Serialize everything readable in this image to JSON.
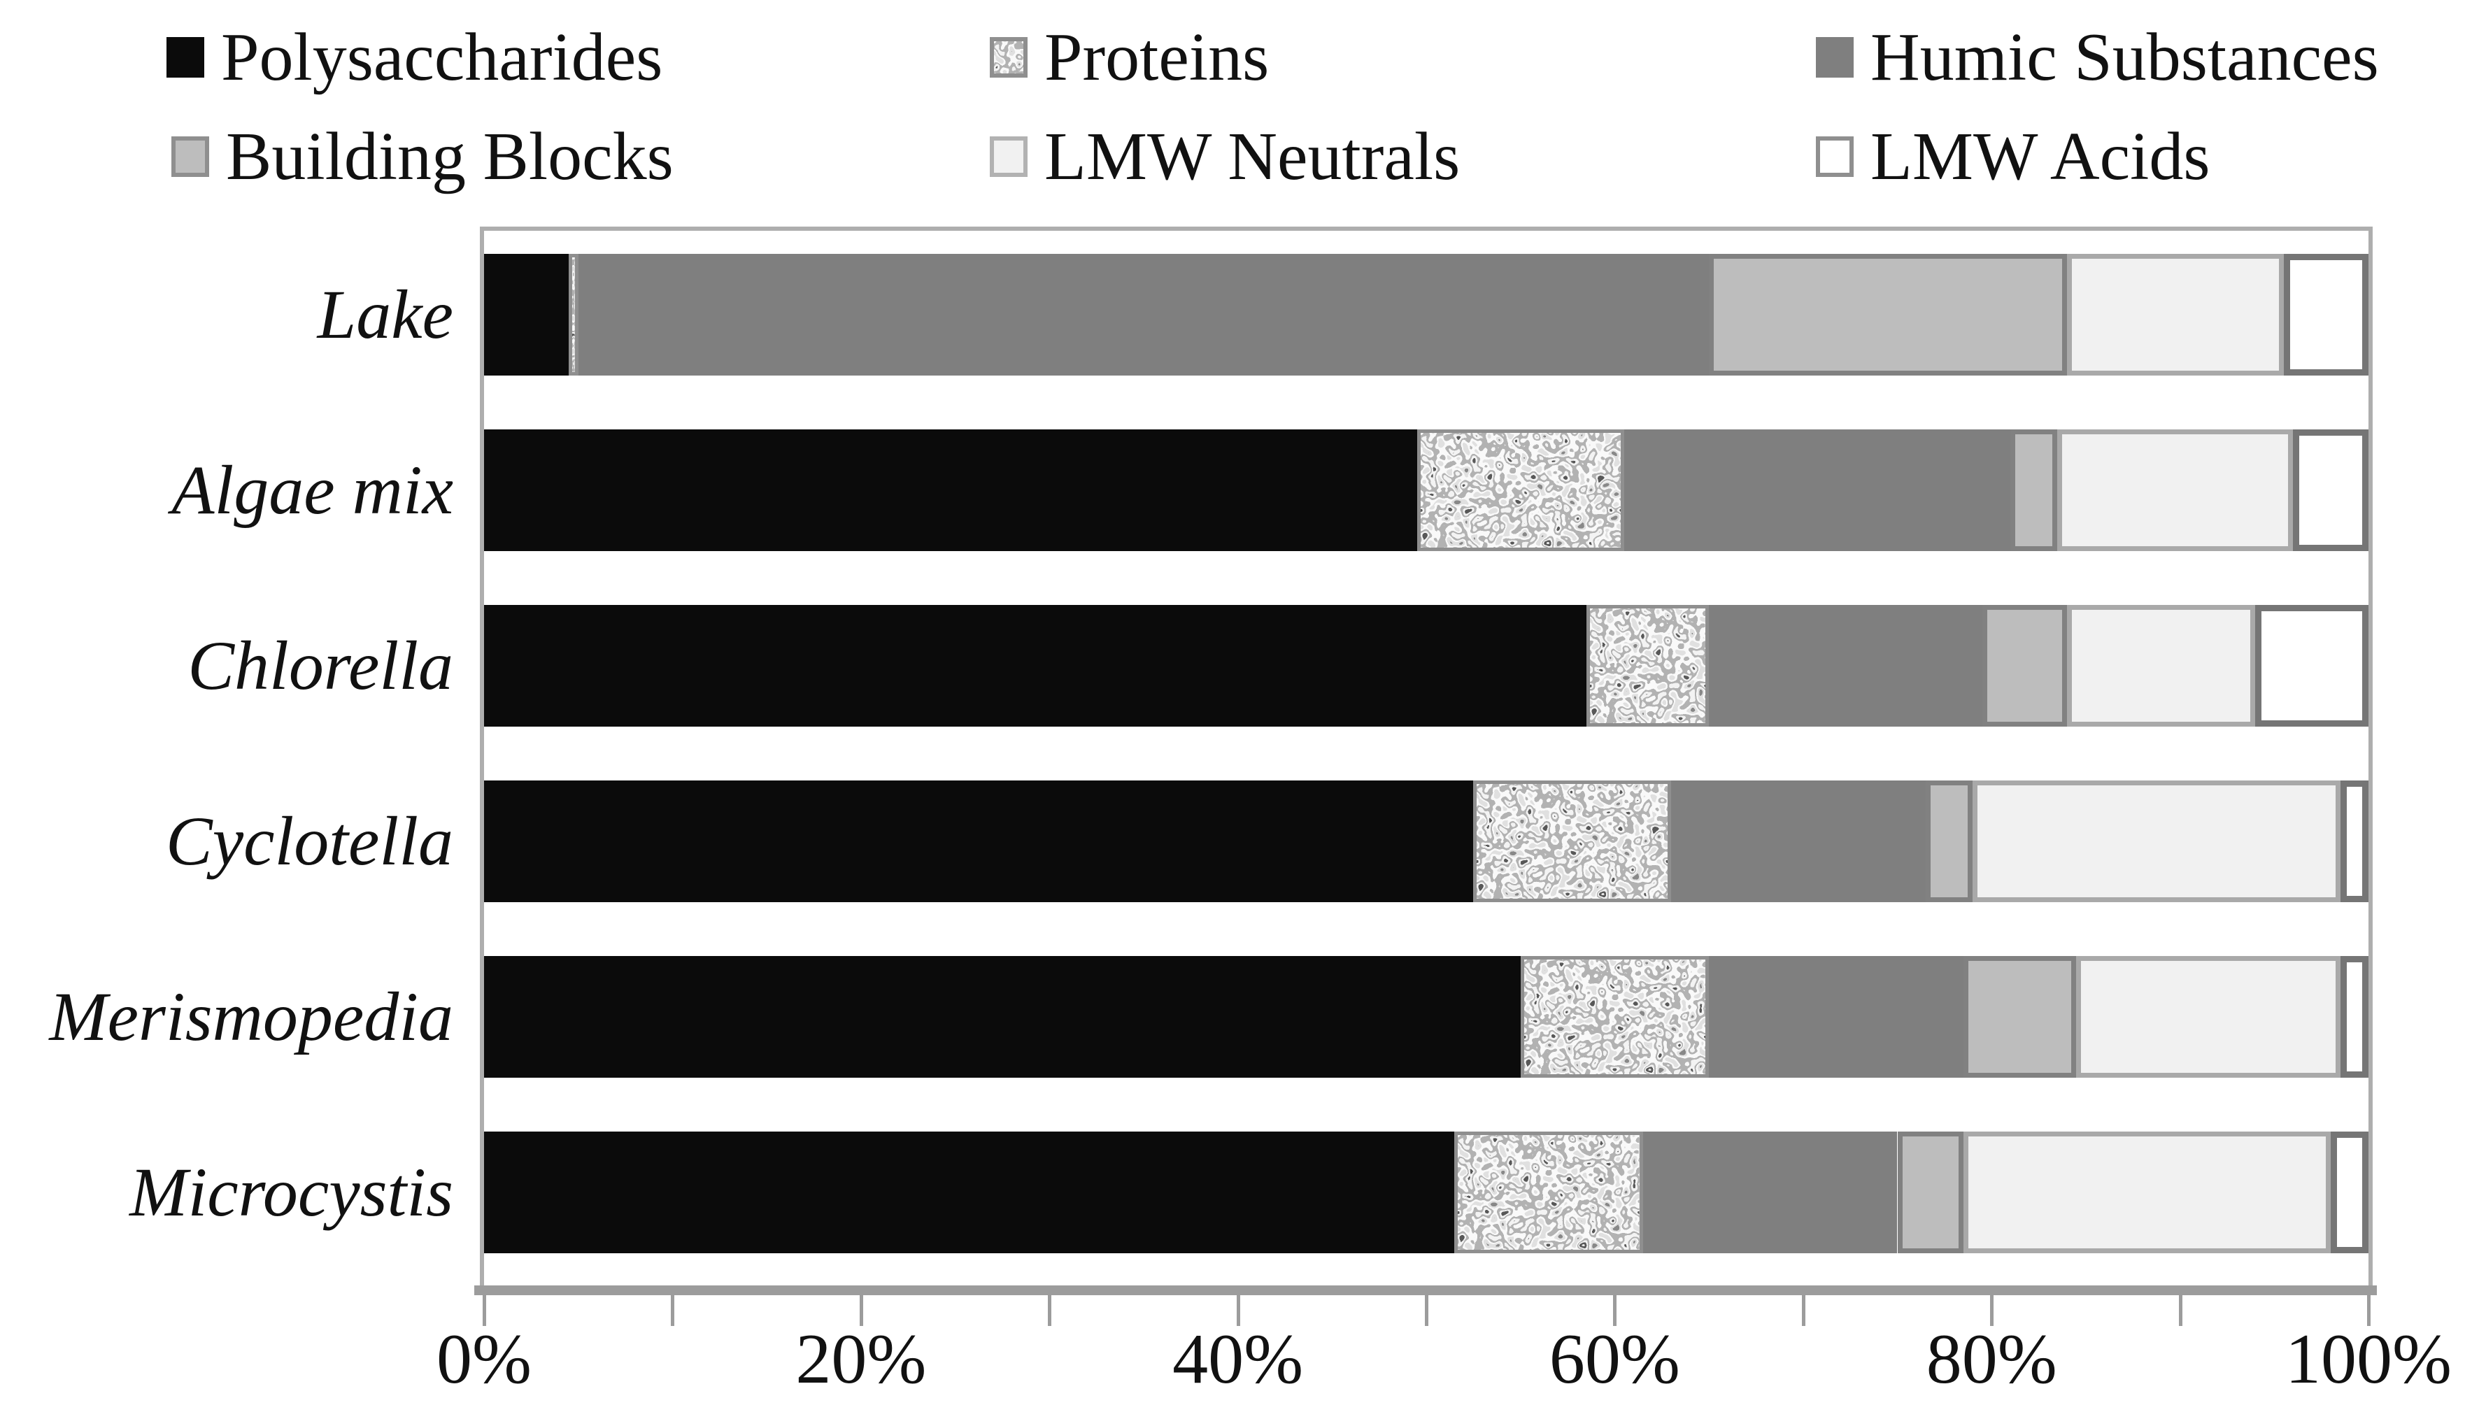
{
  "legend": {
    "position": "top",
    "items": [
      {
        "label": "Polysaccharides"
      },
      {
        "label": "Proteins"
      },
      {
        "label": "Humic Substances"
      },
      {
        "label": "Building Blocks"
      },
      {
        "label": "LMW Neutrals"
      },
      {
        "label": "LMW Acids"
      }
    ]
  },
  "chart_data": {
    "type": "bar",
    "variant": "horizontal-stacked",
    "unit": "%",
    "categories": [
      "Lake",
      "Algae mix",
      "Chlorella",
      "Cyclotella",
      "Merismopedia",
      "Microcystis"
    ],
    "series": [
      {
        "name": "Polysaccharides",
        "values": [
          4.5,
          49.5,
          58.5,
          52.5,
          55,
          51.5
        ]
      },
      {
        "name": "Proteins",
        "values": [
          0.5,
          11,
          6.5,
          10.5,
          10,
          10
        ]
      },
      {
        "name": "Humic Substances",
        "values": [
          60,
          20.5,
          14.5,
          13.5,
          13.5,
          13.5
        ]
      },
      {
        "name": "Building Blocks",
        "values": [
          19,
          2.5,
          4.5,
          2.5,
          6,
          3.5
        ]
      },
      {
        "name": "LMW Neutrals",
        "values": [
          11.5,
          12.5,
          10,
          19.5,
          14,
          19.5
        ]
      },
      {
        "name": "LMW Acids",
        "values": [
          4.5,
          4,
          6,
          1.5,
          1.5,
          2
        ]
      }
    ],
    "xlabel": "",
    "ylabel": "",
    "xlim": [
      0,
      100
    ],
    "x_tick_labels": [
      "0%",
      "20%",
      "40%",
      "60%",
      "80%",
      "100%"
    ],
    "minor_tick_step_percent": 10,
    "grid": false,
    "legend_position": "top",
    "colors": {
      "polysaccharides": "#0b0b0b",
      "proteins_texture_base": "#cfcfcf",
      "humic_substances": "#7f7f7f",
      "building_blocks": "#bdbdbd",
      "lmw_neutrals": "#f1f1f1",
      "lmw_acids": "#ffffff",
      "axis": "#9c9c9c",
      "plot_border": "#aeaeae",
      "text": "#111111"
    }
  }
}
